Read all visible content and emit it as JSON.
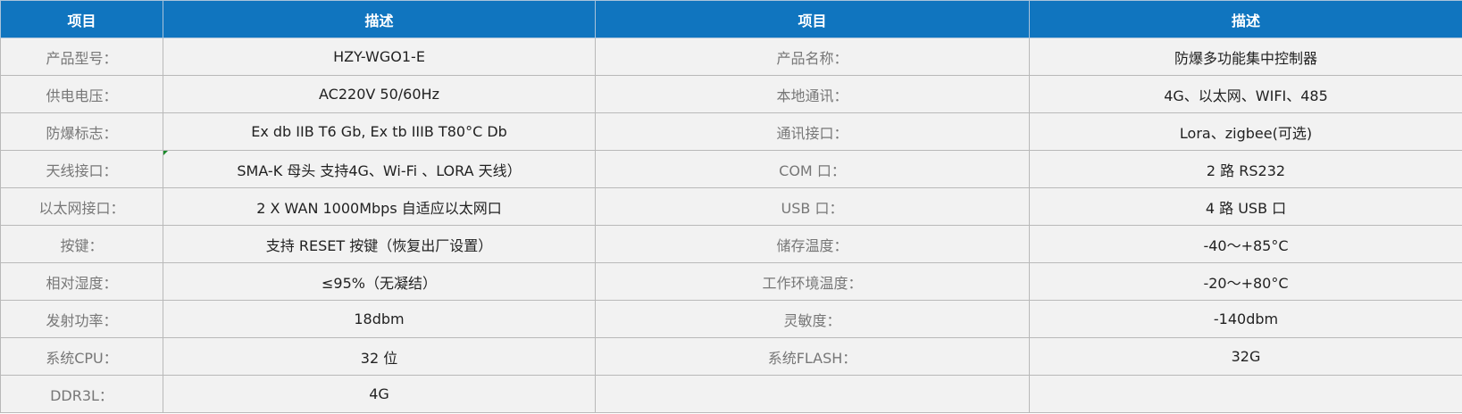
{
  "header": [
    "项目",
    "描述",
    "项目",
    "描述"
  ],
  "rows": [
    [
      "产品型号：",
      "HZY-WGO1-E",
      "产品名称：",
      "防爆多功能集中控制器"
    ],
    [
      "供电电压：",
      "AC220V 50/60Hz",
      "本地通讯：",
      "4G、以太网、WIFI、485"
    ],
    [
      "防爆标志：",
      "Ex db IIB T6 Gb, Ex tb IIIB T80°C Db",
      "通讯接口：",
      "Lora、zigbee(可选)"
    ],
    [
      "天线接口：",
      "SMA-K 母头 支持4G、Wi-Fi 、LORA 天线）",
      "COM 口：",
      "2 路 RS232"
    ],
    [
      "以太网接口：",
      "2 X WAN 1000Mbps 自适应以太网口",
      "USB 口：",
      "4 路 USB 口"
    ],
    [
      "按键：",
      "支持 RESET 按键（恢复出厂设置）",
      "储存温度：",
      "-40～+85°C"
    ],
    [
      "相对湿度：",
      "≤95%（无凝结）",
      "工作环境温度：",
      "-20～+80°C"
    ],
    [
      "发射功率：",
      "18dbm",
      "灵敏度：",
      "-140dbm"
    ],
    [
      "系统CPU：",
      "32 位",
      "系统FLASH：",
      "32G"
    ],
    [
      "DDR3L：",
      "4G",
      "",
      ""
    ]
  ],
  "colors": {
    "header_bg": "#1075bf",
    "cell_bg": "#f2f2f2",
    "label_text": "#777777",
    "value_text": "#222222"
  }
}
